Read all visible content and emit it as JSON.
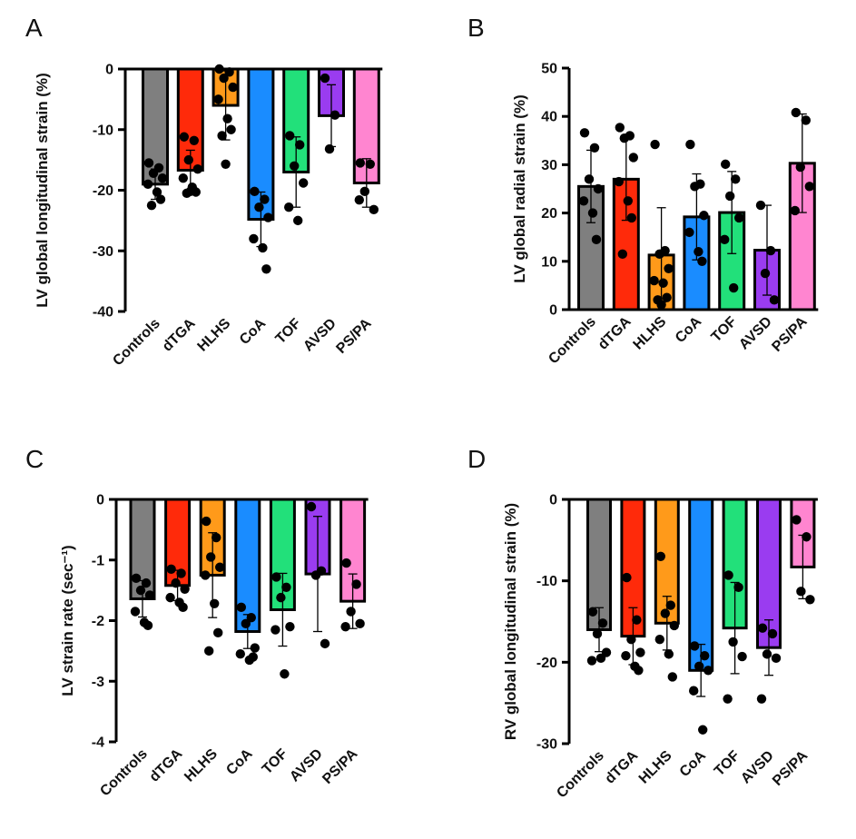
{
  "colors": {
    "Controls": "#7f7f7f",
    "dTGA": "#ff2a0a",
    "HLHS": "#ff9a1a",
    "CoA": "#1a8cff",
    "TOF": "#22e07a",
    "AVSD": "#9a3cf0",
    "PS/PA": "#ff85d0"
  },
  "chart_data": [
    {
      "panel": "A",
      "type": "bar",
      "ylabel": "LV global longitudinal strain (%)",
      "ylim": [
        -40,
        0
      ],
      "yticks": [
        0,
        -10,
        -20,
        -30,
        -40
      ],
      "categories": [
        "Controls",
        "dTGA",
        "HLHS",
        "CoA",
        "TOF",
        "AVSD",
        "PS/PA"
      ],
      "values": [
        -19,
        -16.7,
        -6,
        -24.8,
        -17,
        -7.7,
        -18.8
      ],
      "error": [
        2.5,
        3.3,
        5.7,
        4.5,
        5.8,
        5.1,
        4
      ],
      "points": [
        [
          -15.5,
          -16.3,
          -17.2,
          -18,
          -19,
          -20.3,
          -21.5,
          -22.5
        ],
        [
          -11.2,
          -11.8,
          -15,
          -16.5,
          -18,
          -19.5,
          -20.3,
          -20.5,
          -20.2
        ],
        [
          0,
          -0.5,
          -1.5,
          -3,
          -5,
          -8.2,
          -10,
          -11,
          -15.7
        ],
        [
          -20.2,
          -21.5,
          -22.8,
          -24.5,
          -28,
          -29.5,
          -33
        ],
        [
          -11,
          -12.5,
          -16,
          -18.8,
          -22.8,
          -25
        ],
        [
          -1.5,
          -7.6,
          -13.2
        ],
        [
          -15.5,
          -15.7,
          -20.2,
          -23.2,
          -21.6
        ]
      ]
    },
    {
      "panel": "B",
      "type": "bar",
      "ylabel": "LV global radial strain (%)",
      "ylim": [
        0,
        50
      ],
      "yticks": [
        0,
        10,
        20,
        30,
        40,
        50
      ],
      "categories": [
        "Controls",
        "dTGA",
        "HLHS",
        "CoA",
        "TOF",
        "AVSD",
        "PS/PA"
      ],
      "values": [
        25.5,
        27,
        11.3,
        19.2,
        20.1,
        12.3,
        30.3
      ],
      "error": [
        7.5,
        8.5,
        9.8,
        8.9,
        8.5,
        9.3,
        10.2
      ],
      "points": [
        [
          36.6,
          33.5,
          27,
          25,
          22.5,
          20,
          14.5
        ],
        [
          37.7,
          36,
          35.5,
          31.5,
          26.5,
          22.5,
          19,
          11.5
        ],
        [
          34.2,
          12.2,
          11.5,
          8.5,
          6,
          5.5,
          2.5,
          2,
          1
        ],
        [
          34.2,
          26,
          25.5,
          19.5,
          16,
          12,
          10
        ],
        [
          30.1,
          27,
          23.5,
          19,
          14.5,
          4.5
        ],
        [
          21.6,
          12.2,
          7.5,
          2
        ],
        [
          40.8,
          39.2,
          29.5,
          25.5,
          20.5
        ]
      ]
    },
    {
      "panel": "C",
      "type": "bar",
      "ylabel": "LV strain rate (sec⁻¹)",
      "ylim": [
        -4,
        0
      ],
      "yticks": [
        0,
        -1,
        -2,
        -3,
        -4
      ],
      "categories": [
        "Controls",
        "dTGA",
        "HLHS",
        "CoA",
        "TOF",
        "AVSD",
        "PS/PA"
      ],
      "values": [
        -1.64,
        -1.42,
        -1.25,
        -2.18,
        -1.82,
        -1.23,
        -1.68
      ],
      "error": [
        0.3,
        0.25,
        0.7,
        0.28,
        0.6,
        0.95,
        0.45
      ],
      "points": [
        [
          -1.3,
          -1.38,
          -1.5,
          -1.58,
          -1.85,
          -2.03,
          -2.08
        ],
        [
          -1.15,
          -1.22,
          -1.38,
          -1.48,
          -1.62,
          -1.7,
          -1.78
        ],
        [
          -0.36,
          -0.63,
          -0.95,
          -1.12,
          -1.25,
          -1.72,
          -2.2,
          -2.5
        ],
        [
          -1.78,
          -1.95,
          -2.05,
          -2.45,
          -2.55,
          -2.65,
          -2.6
        ],
        [
          -1.28,
          -1.45,
          -1.62,
          -2.1,
          -2.15,
          -2.88
        ],
        [
          -0.12,
          -1.18,
          -1.25,
          -2.38
        ],
        [
          -1.05,
          -1.4,
          -1.85,
          -2.05,
          -2.1
        ]
      ]
    },
    {
      "panel": "D",
      "type": "bar",
      "ylabel": "RV global longitudinal strain (%)",
      "ylim": [
        -30,
        0
      ],
      "yticks": [
        0,
        -10,
        -20,
        -30
      ],
      "categories": [
        "Controls",
        "dTGA",
        "HLHS",
        "CoA",
        "TOF",
        "AVSD",
        "PS/PA"
      ],
      "values": [
        -16,
        -16.8,
        -15.2,
        -21,
        -15.8,
        -18.2,
        -8.3
      ],
      "error": [
        2.7,
        3.5,
        3.3,
        3.2,
        5.6,
        3.4,
        3.9
      ],
      "points": [
        [
          -13.8,
          -15.2,
          -16.5,
          -18.8,
          -19.8,
          -19.5
        ],
        [
          -9.6,
          -14.8,
          -17.2,
          -18.8,
          -19.2,
          -20.5,
          -21
        ],
        [
          -7,
          -13,
          -14,
          -15.5,
          -17.2,
          -19,
          -21.8
        ],
        [
          -18,
          -19.2,
          -20.5,
          -21,
          -23.5,
          -28.3
        ],
        [
          -9.3,
          -10.8,
          -17.5,
          -19.3,
          -24.5
        ],
        [
          -15.8,
          -16.5,
          -19,
          -19.5,
          -24.5
        ],
        [
          -2.5,
          -4.6,
          -11.3,
          -12.3
        ]
      ]
    }
  ]
}
